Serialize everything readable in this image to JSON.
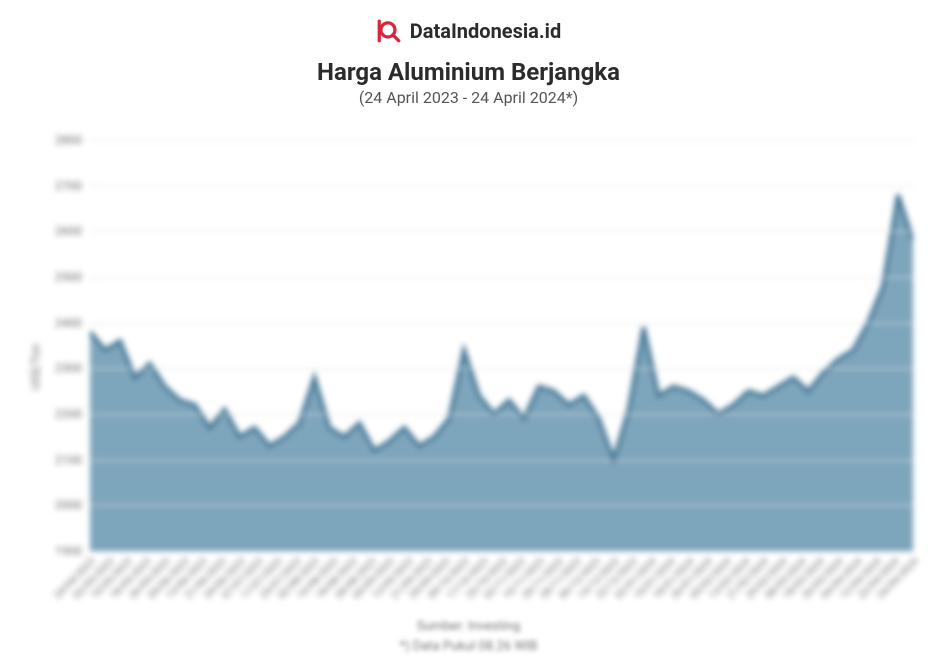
{
  "brand": {
    "text": "DataIndonesia.id",
    "logo_color": "#d7263d"
  },
  "title": "Harga Aluminium Berjangka",
  "subtitle": "(24 April 2023 - 24 April 2024*)",
  "footer": {
    "source": "Sumber: Investing",
    "note": "*) Data Pukul 08.26 WIB"
  },
  "chart": {
    "type": "area",
    "y_axis_label": "US$/Ton",
    "ylim": [
      1900,
      2800
    ],
    "ytick_step": 100,
    "yticks": [
      1900,
      2000,
      2100,
      2200,
      2300,
      2400,
      2500,
      2600,
      2700,
      2800
    ],
    "line_color": "#3b6f8f",
    "area_color": "#6a98b2",
    "area_opacity": 0.92,
    "background_color": "#ffffff",
    "grid_color": "#e2e2e2",
    "axis_color": "#bbbbbb",
    "title_fontsize": 24,
    "subtitle_fontsize": 16,
    "axis_label_fontsize": 12,
    "tick_fontsize": 12,
    "xtick_fontsize": 10,
    "xtick_rotation": -45,
    "x_labels": [
      "24/04/2023",
      "02/05/2023",
      "10/05/2023",
      "18/05/2023",
      "26/05/2023",
      "05/06/2023",
      "13/06/2023",
      "21/06/2023",
      "29/06/2023",
      "07/07/2023",
      "17/07/2023",
      "25/07/2023",
      "02/08/2023",
      "10/08/2023",
      "18/08/2023",
      "28/08/2023",
      "05/09/2023",
      "13/09/2023",
      "21/09/2023",
      "29/09/2023",
      "09/10/2023",
      "17/10/2023",
      "25/10/2023",
      "02/11/2023",
      "10/11/2023",
      "20/11/2023",
      "28/11/2023",
      "06/12/2023",
      "14/12/2023",
      "22/12/2023",
      "02/01/2024",
      "10/01/2024",
      "18/01/2024",
      "26/01/2024",
      "05/02/2024",
      "13/02/2024",
      "21/02/2024",
      "29/02/2024",
      "08/03/2024",
      "18/03/2024",
      "26/03/2024",
      "04/04/2024",
      "12/04/2024",
      "22/04/2024",
      "24/04/2024"
    ],
    "values": [
      2380,
      2340,
      2360,
      2280,
      2310,
      2260,
      2230,
      2220,
      2170,
      2210,
      2150,
      2170,
      2130,
      2150,
      2180,
      2280,
      2170,
      2150,
      2180,
      2120,
      2140,
      2170,
      2130,
      2150,
      2190,
      2340,
      2240,
      2200,
      2230,
      2190,
      2260,
      2250,
      2220,
      2240,
      2190,
      2100,
      2210,
      2390,
      2240,
      2260,
      2250,
      2230,
      2200,
      2220,
      2250,
      2240,
      2260,
      2280,
      2250,
      2290,
      2320,
      2340,
      2400,
      2480,
      2680,
      2580
    ],
    "n_points": 56
  }
}
